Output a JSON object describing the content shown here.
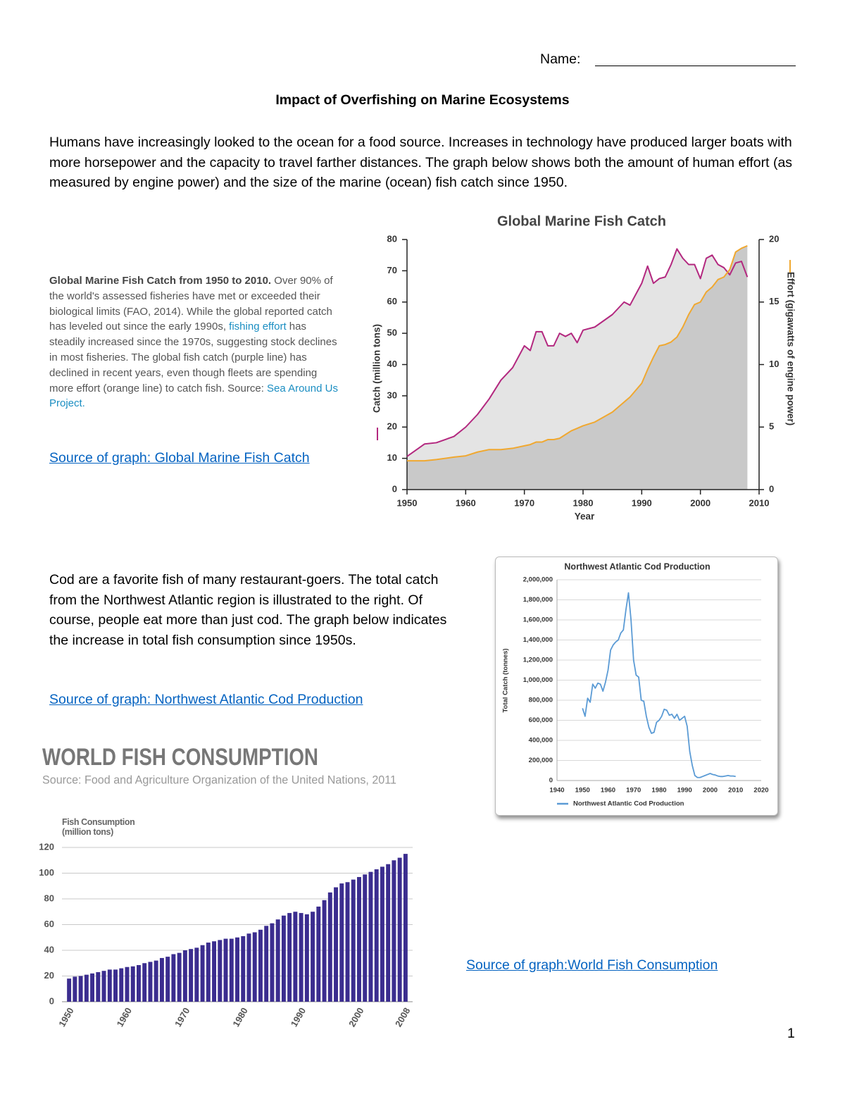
{
  "name_label": "Name:",
  "title": "Impact of Overfishing on Marine Ecosystems",
  "intro": "Humans have increasingly looked to the ocean for a food source.  Increases in technology have produced larger boats with more horsepower and the capacity to travel farther distances.  The graph below shows both the amount of human effort (as measured by engine power) and the size of the marine (ocean) fish catch since 1950.",
  "caption": [
    "Global Marine Fish Catch from 1950 to 2010.",
    " Over 90% of the world's assessed fisheries have met or exceeded their biological limits (FAO, 2014). While the global reported catch has leveled out since the early 1990s, ",
    "fishing effort",
    " has steadily increased since the 1970s, suggesting stock declines in most fisheries. The global fish catch (purple line) has declined in recent years, even though fleets are spending more effort (orange line) to catch fish. Source: ",
    "Sea Around Us Project."
  ],
  "link_catch": "Source of graph: Global Marine Fish Catch",
  "cod_text": "Cod are a favorite fish of many restaurant-goers.  The total catch from the Northwest Atlantic region is illustrated to the right.  Of course, people eat more than just cod.  The graph below indicates the increase in total fish consumption since 1950s.",
  "link_cod": "Source of graph:  Northwest Atlantic Cod Production",
  "link_consumption": "Source of graph:World Fish Consumption",
  "page_number": "1",
  "chart_data": [
    {
      "type": "line",
      "title": "Global Marine Fish Catch",
      "xlabel": "Year",
      "ylabel": "Catch (million tons)",
      "y2label": "Effort (gigawatts of engine power)",
      "x": [
        1950,
        1953,
        1955,
        1958,
        1960,
        1962,
        1964,
        1966,
        1968,
        1970,
        1971,
        1972,
        1973,
        1974,
        1975,
        1976,
        1977,
        1978,
        1979,
        1980,
        1982,
        1985,
        1987,
        1988,
        1990,
        1991,
        1992,
        1993,
        1994,
        1995,
        1996,
        1997,
        1998,
        1999,
        2000,
        2001,
        2002,
        2003,
        2004,
        2005,
        2006,
        2007,
        2008
      ],
      "series": [
        {
          "color": "#b3287f",
          "values": [
            10.6,
            14.6,
            15,
            17,
            20,
            24,
            29,
            35,
            39,
            46,
            44.5,
            50.5,
            50.5,
            46,
            46,
            50,
            49,
            50,
            47,
            51,
            52,
            56,
            60,
            59,
            66,
            71.5,
            66,
            67.5,
            68,
            72,
            77,
            74,
            72,
            72,
            67.5,
            74,
            75,
            72,
            71,
            68.7,
            72.5,
            73,
            68
          ]
        },
        {
          "color": "#f0a830",
          "axis": "y2",
          "values": [
            2.3,
            2.3,
            2.4,
            2.6,
            2.7,
            3.0,
            3.2,
            3.2,
            3.3,
            3.5,
            3.6,
            3.8,
            3.8,
            4.0,
            4.0,
            4.1,
            4.4,
            4.7,
            4.9,
            5.1,
            5.4,
            6.2,
            7.0,
            7.4,
            8.5,
            9.6,
            10.6,
            11.5,
            11.6,
            11.8,
            12.2,
            13.0,
            14.0,
            14.8,
            15.0,
            15.8,
            16.2,
            16.8,
            17.0,
            17.6,
            19.0,
            19.3,
            19.5
          ]
        }
      ],
      "xlim": [
        1950,
        2010
      ],
      "xticks": [
        1950,
        1960,
        1970,
        1980,
        1990,
        2000,
        2010
      ],
      "ylim": [
        0,
        80
      ],
      "yticks": [
        0,
        10,
        20,
        30,
        40,
        50,
        60,
        70,
        80
      ],
      "y2lim": [
        0,
        20
      ],
      "y2ticks": [
        0,
        5,
        10,
        15,
        20
      ],
      "grid": false
    },
    {
      "type": "line",
      "title": "Northwest Atlantic Cod Production",
      "ylabel": "Total Catch (tonnes)",
      "x": [
        1950,
        1951,
        1952,
        1953,
        1954,
        1955,
        1956,
        1957,
        1958,
        1959,
        1960,
        1961,
        1962,
        1963,
        1964,
        1965,
        1966,
        1967,
        1968,
        1969,
        1970,
        1971,
        1972,
        1973,
        1974,
        1975,
        1976,
        1977,
        1978,
        1979,
        1980,
        1981,
        1982,
        1983,
        1984,
        1985,
        1986,
        1987,
        1988,
        1989,
        1990,
        1991,
        1992,
        1993,
        1994,
        1995,
        1996,
        1997,
        1998,
        1999,
        2000,
        2001,
        2002,
        2003,
        2004,
        2005,
        2006,
        2007,
        2008,
        2009,
        2010
      ],
      "series": [
        {
          "name": "Northwest Atlantic Cod Production",
          "color": "#5b9bd5",
          "values": [
            720000,
            640000,
            820000,
            780000,
            960000,
            920000,
            970000,
            960000,
            890000,
            980000,
            1100000,
            1300000,
            1350000,
            1380000,
            1400000,
            1470000,
            1500000,
            1700000,
            1870000,
            1600000,
            1200000,
            1050000,
            1030000,
            800000,
            790000,
            640000,
            530000,
            470000,
            480000,
            580000,
            600000,
            640000,
            710000,
            700000,
            650000,
            660000,
            620000,
            660000,
            600000,
            620000,
            640000,
            540000,
            290000,
            150000,
            50000,
            30000,
            30000,
            40000,
            50000,
            60000,
            70000,
            60000,
            55000,
            45000,
            40000,
            40000,
            45000,
            50000,
            45000,
            45000,
            40000
          ]
        }
      ],
      "xlim": [
        1940,
        2020
      ],
      "xticks": [
        1940,
        1950,
        1960,
        1970,
        1980,
        1990,
        2000,
        2010,
        2020
      ],
      "ylim": [
        0,
        2000000
      ],
      "yticks": [
        0,
        {
          "value": 200000,
          "label": "200,000"
        },
        {
          "value": 400000,
          "label": "400,000"
        },
        {
          "value": 600000,
          "label": "600,000"
        },
        {
          "value": 800000,
          "label": "800,000"
        },
        {
          "value": 1000000,
          "label": "1,000,000"
        },
        {
          "value": 1200000,
          "label": "1,200,000"
        },
        {
          "value": 1400000,
          "label": "1,400,000"
        },
        {
          "value": 1600000,
          "label": "1,600,000"
        },
        {
          "value": 1800000,
          "label": "1,800,000"
        },
        {
          "value": 2000000,
          "label": "2,000,000"
        }
      ],
      "grid": true,
      "legend": "bottom"
    },
    {
      "type": "bar",
      "title": "WORLD FISH CONSUMPTION",
      "subtitle": "Source: Food and Agriculture Organization of the United Nations, 2011",
      "ylabel": "Fish Consumption (million tons)",
      "categories": [
        "1950",
        null,
        null,
        null,
        null,
        null,
        null,
        null,
        null,
        null,
        "1960",
        null,
        null,
        null,
        null,
        null,
        null,
        null,
        null,
        null,
        "1970",
        null,
        null,
        null,
        null,
        null,
        null,
        null,
        null,
        null,
        "1980",
        null,
        null,
        null,
        null,
        null,
        null,
        null,
        null,
        null,
        "1990",
        null,
        null,
        null,
        null,
        null,
        null,
        null,
        null,
        null,
        "2000",
        null,
        null,
        null,
        null,
        null,
        null,
        null,
        "2008"
      ],
      "values": [
        18,
        19.5,
        20,
        21,
        22,
        23,
        24,
        25,
        25,
        26,
        27,
        27.5,
        28.5,
        30,
        31,
        32,
        34,
        35,
        37,
        38,
        40,
        41,
        42,
        44,
        46,
        47,
        48,
        49,
        49,
        50,
        51,
        53,
        54,
        56,
        59,
        61,
        64,
        67,
        69,
        70,
        69,
        68,
        70,
        74,
        79,
        85,
        89,
        92,
        93,
        95,
        97,
        99,
        101,
        103,
        105,
        107,
        110,
        112,
        115
      ],
      "color": "#3b2d8f",
      "ylim": [
        0,
        120
      ],
      "yticks": [
        0,
        20,
        40,
        60,
        80,
        100,
        120
      ],
      "grid": true
    }
  ]
}
